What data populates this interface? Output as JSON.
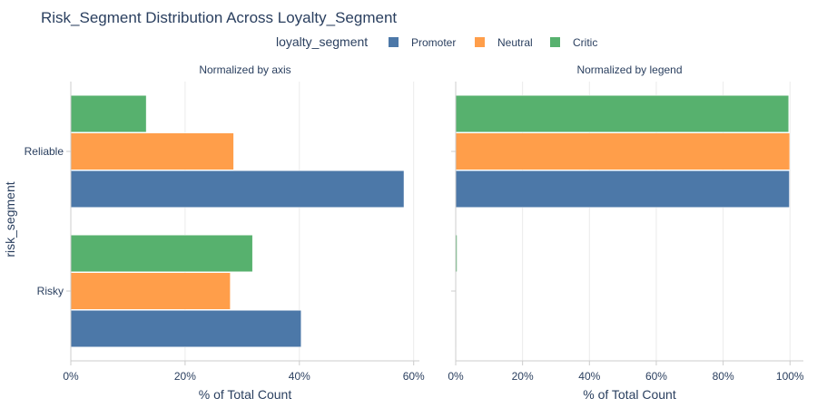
{
  "chart_data": {
    "type": "bar",
    "orientation": "horizontal",
    "title": "Risk_Segment Distribution Across Loyalty_Segment",
    "legend": {
      "title": "loyalty_segment",
      "placement": "top-center",
      "entries": [
        "Promoter",
        "Neutral",
        "Critic"
      ]
    },
    "categories": [
      "Reliable",
      "Risky"
    ],
    "ylabel": "risk_segment",
    "colors": {
      "Promoter": "#4c78a8",
      "Neutral": "#ff9e4a",
      "Critic": "#57b16e"
    },
    "panels": [
      {
        "subtitle": "Normalized by axis",
        "xlabel": "% of Total Count",
        "xlim": [
          0,
          61
        ],
        "xticks": [
          0,
          20,
          40,
          60
        ],
        "xtick_labels": [
          "0%",
          "20%",
          "40%",
          "60%"
        ],
        "series": [
          {
            "name": "Promoter",
            "values": [
              58.3,
              40.3
            ]
          },
          {
            "name": "Neutral",
            "values": [
              28.5,
              27.9
            ]
          },
          {
            "name": "Critic",
            "values": [
              13.2,
              31.8
            ]
          }
        ]
      },
      {
        "subtitle": "Normalized by legend",
        "xlabel": "% of Total Count",
        "xlim": [
          0,
          104
        ],
        "xticks": [
          0,
          20,
          40,
          60,
          80,
          100
        ],
        "xtick_labels": [
          "0%",
          "20%",
          "40%",
          "60%",
          "80%",
          "100%"
        ],
        "series": [
          {
            "name": "Promoter",
            "values": [
              99.8,
              0.2
            ]
          },
          {
            "name": "Neutral",
            "values": [
              99.9,
              0.1
            ]
          },
          {
            "name": "Critic",
            "values": [
              99.6,
              0.4
            ]
          }
        ]
      }
    ]
  }
}
